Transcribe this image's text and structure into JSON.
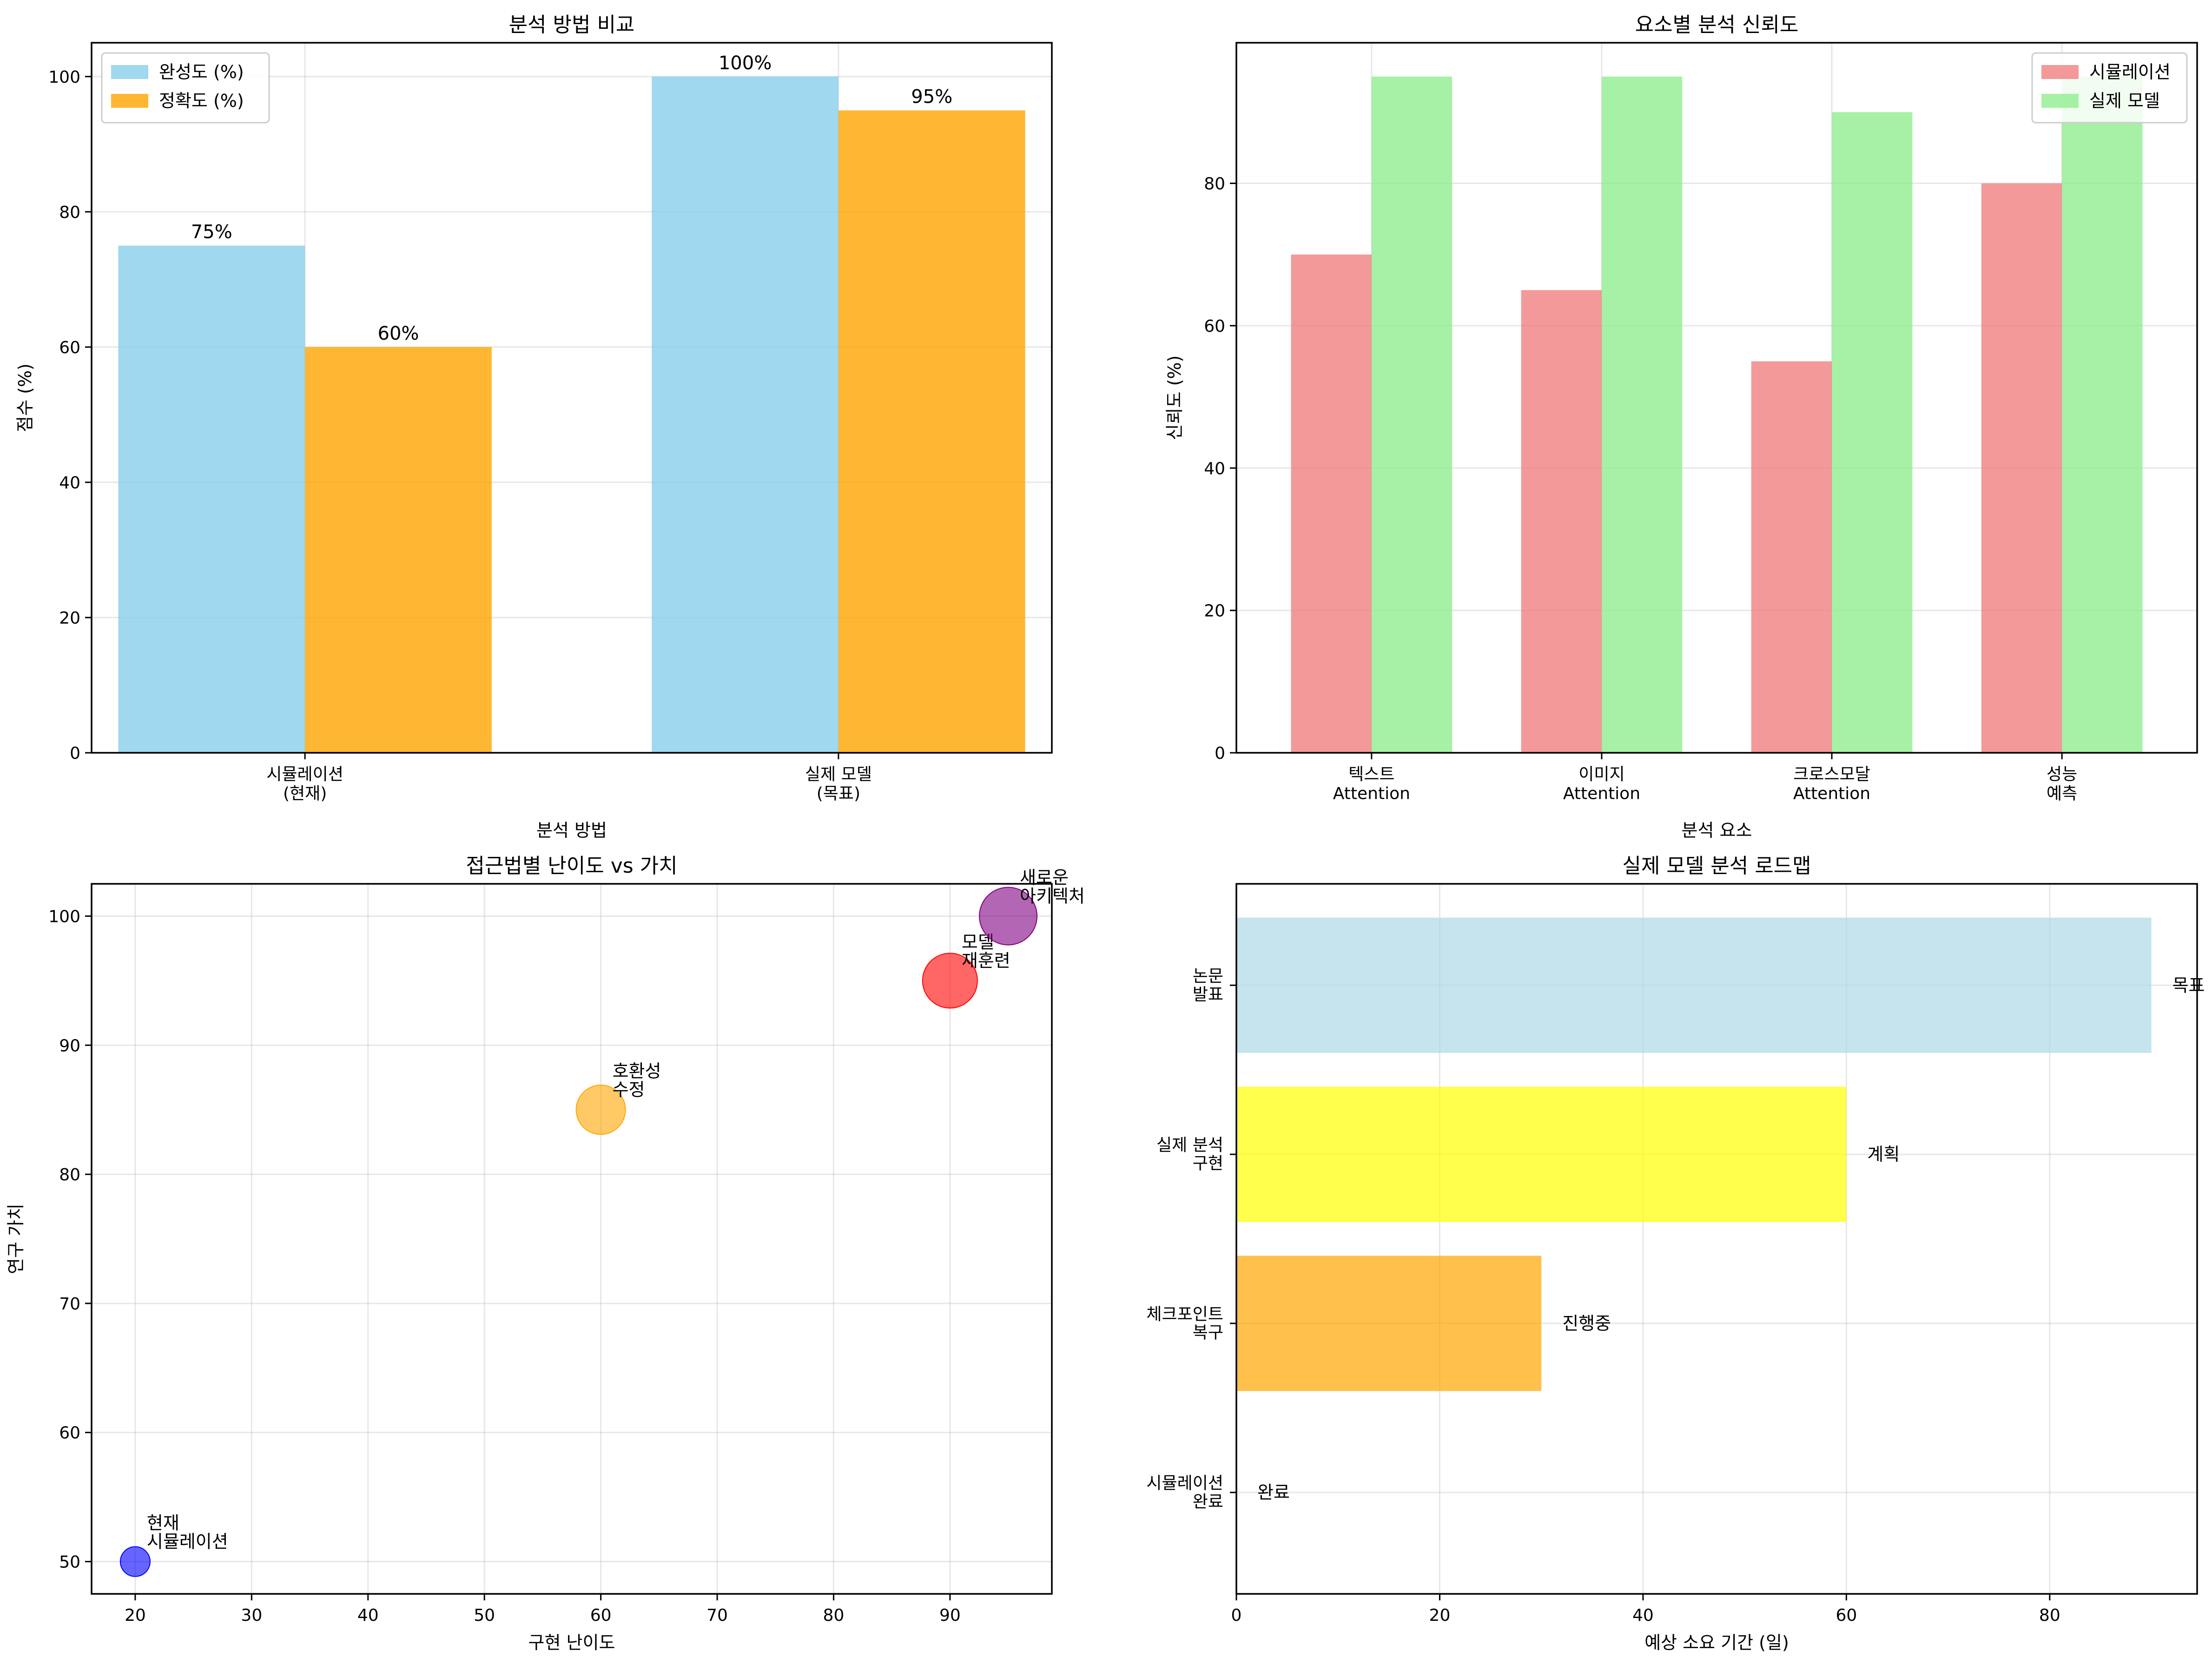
{
  "chart_data": [
    {
      "type": "bar",
      "title": "분석 방법 비교",
      "xlabel": "분석 방법",
      "ylabel": "점수 (%)",
      "categories": [
        "시뮬레이션\n(현재)",
        "실제 모델\n(목표)"
      ],
      "series": [
        {
          "name": "완성도 (%)",
          "values": [
            75,
            100
          ],
          "labels": [
            "75%",
            "100%"
          ],
          "color": "#87CEEB"
        },
        {
          "name": "정확도 (%)",
          "values": [
            60,
            95
          ],
          "labels": [
            "60%",
            "95%"
          ],
          "color": "#FFA500"
        }
      ],
      "ylim": [
        0,
        105
      ],
      "yticks": [
        0,
        20,
        40,
        60,
        80,
        100
      ],
      "grid": true,
      "legend": "upper-left"
    },
    {
      "type": "bar",
      "title": "요소별 분석 신뢰도",
      "xlabel": "분석 요소",
      "ylabel": "신뢰도 (%)",
      "categories": [
        "텍스트\nAttention",
        "이미지\nAttention",
        "크로스모달\nAttention",
        "성능\n예측"
      ],
      "series": [
        {
          "name": "시뮬레이션",
          "values": [
            70,
            65,
            55,
            80
          ],
          "color": "#F08080"
        },
        {
          "name": "실제 모델",
          "values": [
            95,
            95,
            90,
            95
          ],
          "color": "#90EE90"
        }
      ],
      "ylim": [
        0,
        99.75
      ],
      "yticks": [
        0,
        20,
        40,
        60,
        80
      ],
      "grid": true,
      "legend": "upper-right"
    },
    {
      "type": "scatter",
      "title": "접근법별 난이도 vs 가치",
      "xlabel": "구현 난이도",
      "ylabel": "연구 가치",
      "points": [
        {
          "x": 20,
          "y": 50,
          "label": "현재\n시뮬레이션",
          "color": "#0000FF"
        },
        {
          "x": 60,
          "y": 85,
          "label": "호환성\n수정",
          "color": "#FFA500"
        },
        {
          "x": 90,
          "y": 95,
          "label": "모델\n재훈련",
          "color": "#FF0000"
        },
        {
          "x": 95,
          "y": 100,
          "label": "새로운\n아키텍처",
          "color": "#800080"
        }
      ],
      "xlim": [
        16.25,
        98.75
      ],
      "ylim": [
        47.5,
        102.5
      ],
      "xticks": [
        20,
        30,
        40,
        50,
        60,
        70,
        80,
        90
      ],
      "yticks": [
        50,
        60,
        70,
        80,
        90,
        100
      ],
      "grid": true
    },
    {
      "type": "bar",
      "orientation": "horizontal",
      "title": "실제 모델 분석 로드맵",
      "xlabel": "예상 소요 기간 (일)",
      "ylabel": "",
      "categories": [
        "시뮬레이션\n완료",
        "체크포인트\n복구",
        "실제 분석\n구현",
        "논문\n발표"
      ],
      "values": [
        0,
        30,
        60,
        90
      ],
      "status": [
        "완료",
        "진행중",
        "계획",
        "목표"
      ],
      "colors": [
        "#90EE90",
        "#FFA500",
        "#FFFF00",
        "#ADD8E6"
      ],
      "xlim": [
        0,
        94.5
      ],
      "xticks": [
        0,
        20,
        40,
        60,
        80
      ],
      "grid": true
    }
  ]
}
